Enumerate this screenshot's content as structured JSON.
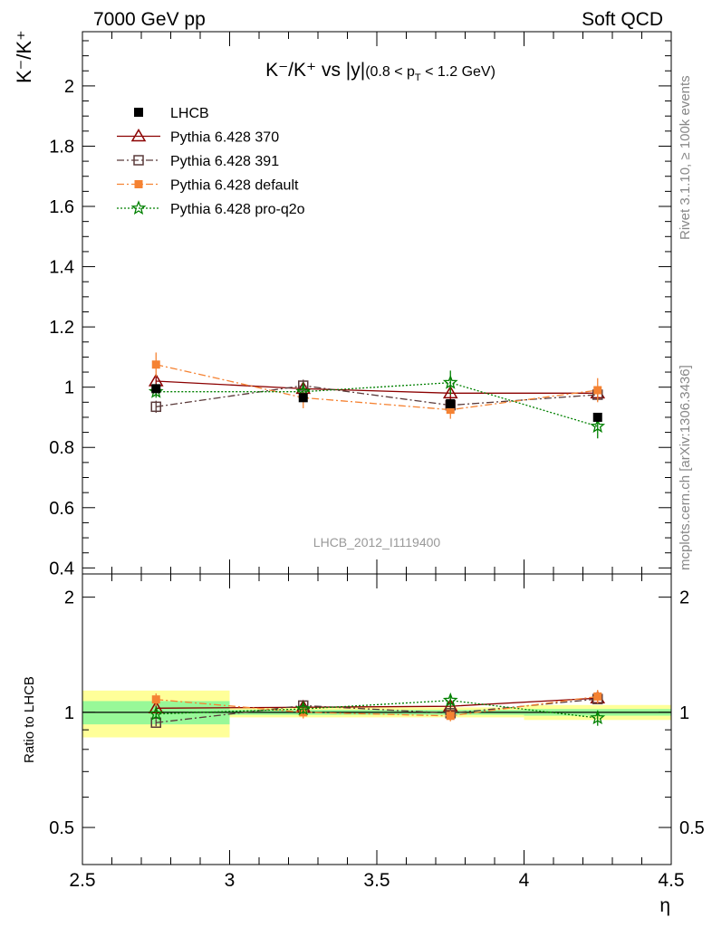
{
  "header": {
    "left": "7000 GeV pp",
    "right": "Soft QCD"
  },
  "side_labels": {
    "rivet": "Rivet 3.1.10, ≥ 100k events",
    "mcplots": "mcplots.cern.ch [arXiv:1306.3436]"
  },
  "chart_data": {
    "type": "scatter",
    "title": "K⁻/K⁺ vs |y|(0.8 < p_T < 1.2 GeV)",
    "title_main": "K⁻/K⁺ vs |y|",
    "title_sub": "(0.8 < p",
    "title_sub_T": "T",
    "title_sub_end": " < 1.2 GeV)",
    "ylabel": "K⁻/K⁺",
    "xlabel": "η",
    "ratio_ylabel": "Ratio to LHCB",
    "watermark": "LHCB_2012_I1119400",
    "xlim": [
      2.5,
      4.5
    ],
    "ylim": [
      0.38,
      2.18
    ],
    "ratio_ylim": [
      0.4,
      2.3
    ],
    "x_ticks": [
      "2.5",
      "3",
      "3.5",
      "4",
      "4.5"
    ],
    "y_ticks": [
      "0.4",
      "0.6",
      "0.8",
      "1",
      "1.2",
      "1.4",
      "1.6",
      "1.8",
      "2"
    ],
    "ratio_ticks": [
      "0.5",
      "1",
      "2"
    ],
    "x": [
      2.75,
      3.25,
      3.75,
      4.25
    ],
    "x_bins": [
      [
        2.5,
        3.0
      ],
      [
        3.0,
        3.5
      ],
      [
        3.5,
        4.0
      ],
      [
        4.0,
        4.5
      ]
    ],
    "data": {
      "name": "LHCB",
      "values": [
        0.995,
        0.965,
        0.945,
        0.9
      ],
      "ratio_band_inner": [
        0.07,
        0.015,
        0.015,
        0.02
      ],
      "ratio_band_outer": [
        0.14,
        0.03,
        0.03,
        0.045
      ]
    },
    "series": [
      {
        "name": "Pythia 6.428 370",
        "color": "#8b0000",
        "marker": "triangle-open",
        "dash": "solid",
        "values": [
          1.02,
          0.995,
          0.98,
          0.98
        ],
        "errors": [
          0.02,
          0.02,
          0.02,
          0.02
        ]
      },
      {
        "name": "Pythia 6.428 391",
        "color": "#5a3a3a",
        "marker": "square-open",
        "dash": "dashdot",
        "values": [
          0.935,
          1.005,
          0.94,
          0.975
        ],
        "errors": [
          0.02,
          0.02,
          0.02,
          0.02
        ]
      },
      {
        "name": "Pythia 6.428 default",
        "color": "#f58232",
        "marker": "square-filled",
        "dash": "dashdot",
        "values": [
          1.075,
          0.965,
          0.925,
          0.99
        ],
        "errors": [
          0.04,
          0.035,
          0.03,
          0.04
        ]
      },
      {
        "name": "Pythia 6.428 pro-q2o",
        "color": "#008000",
        "marker": "star",
        "dash": "dotted",
        "values": [
          0.985,
          0.985,
          1.015,
          0.87
        ],
        "errors": [
          0.02,
          0.03,
          0.04,
          0.04
        ]
      }
    ],
    "legend_position": "top-left",
    "grid": false
  }
}
